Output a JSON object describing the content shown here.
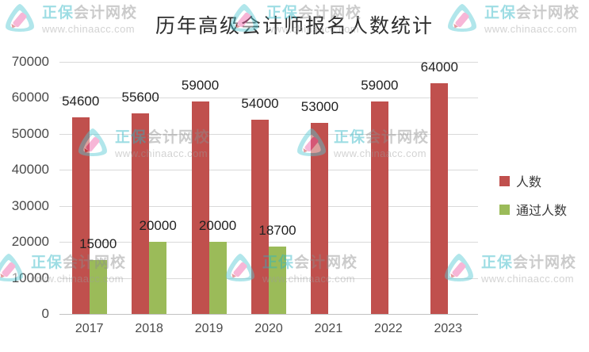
{
  "watermark": {
    "brand_primary": "正保",
    "brand_secondary": "会计网校",
    "url": "www.chinaacc.com",
    "logo_icon": "zhengbao-logo-icon"
  },
  "colors": {
    "registered_bar": "#c0504d",
    "passed_bar": "#9bbb59",
    "gridline": "#d9d9d9",
    "axis_line": "#c2c2c2"
  },
  "chart_data": {
    "type": "bar",
    "title": "历年高级会计师报名人数统计",
    "categories": [
      "2017",
      "2018",
      "2019",
      "2020",
      "2021",
      "2022",
      "2023"
    ],
    "series": [
      {
        "name": "人数",
        "color": "#c0504d",
        "values": [
          54600,
          55600,
          59000,
          54000,
          53000,
          59000,
          64000
        ]
      },
      {
        "name": "通过人数",
        "color": "#9bbb59",
        "values": [
          15000,
          20000,
          20000,
          18700,
          null,
          null,
          null
        ]
      }
    ],
    "xlabel": "",
    "ylabel": "",
    "ylim": [
      0,
      70000
    ],
    "ytick_step": 10000,
    "grid": true,
    "legend_position": "right",
    "data_labels": true
  }
}
